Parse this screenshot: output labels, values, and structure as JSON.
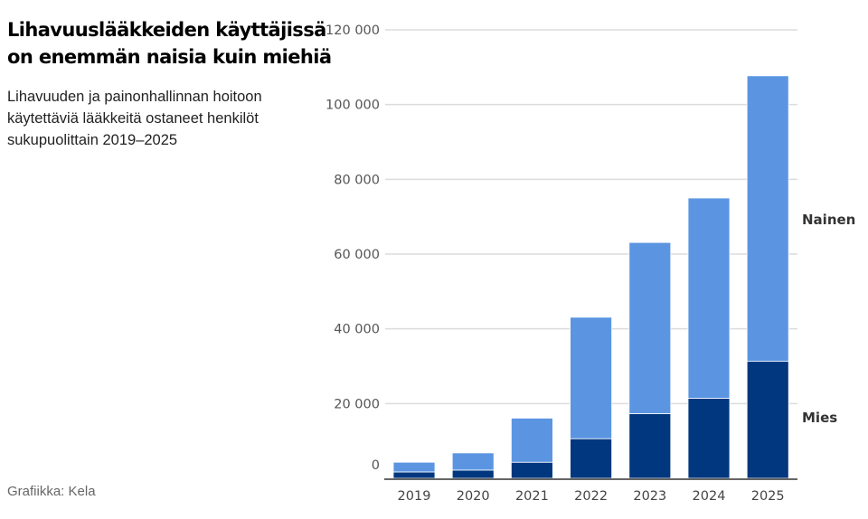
{
  "header": {
    "title": "Lihavuuslääkkeiden käyttäjissä on enemmän naisia kuin miehiä",
    "subtitle": "Lihavuuden ja painonhallinnan hoitoon käytettäviä lääkkeitä ostaneet henkilöt sukupuolittain 2019–2025"
  },
  "footer": {
    "source": "Grafiikka: Kela"
  },
  "colors": {
    "nainen": "#5b95e2",
    "mies": "#00377f",
    "grid": "#dcdcdc",
    "axis": "#333333"
  },
  "chart_data": {
    "type": "bar",
    "stacked": true,
    "title": "Lihavuuslääkkeiden käyttäjissä on enemmän naisia kuin miehiä",
    "subtitle": "Lihavuuden ja painonhallinnan hoitoon käytettäviä lääkkeitä ostaneet henkilöt sukupuolittain 2019–2025",
    "categories": [
      "2019",
      "2020",
      "2021",
      "2022",
      "2023",
      "2024",
      "2025"
    ],
    "series": [
      {
        "name": "Mies",
        "values": [
          1700,
          2200,
          4300,
          10600,
          17300,
          21400,
          31300
        ]
      },
      {
        "name": "Nainen",
        "values": [
          2600,
          4600,
          11800,
          32500,
          45800,
          53600,
          76400
        ]
      }
    ],
    "totals": [
      4300,
      6800,
      16100,
      43100,
      63100,
      75000,
      107700
    ],
    "xlabel": "",
    "ylabel": "",
    "ylim": [
      0,
      120000
    ],
    "yticks": [
      0,
      20000,
      40000,
      60000,
      80000,
      100000,
      120000
    ],
    "ytick_labels": [
      "0",
      "20 000",
      "40 000",
      "60 000",
      "80 000",
      "100 000",
      "120 000"
    ],
    "grid": true,
    "legend_position": "right, inline labels",
    "source": "Grafiikka: Kela"
  }
}
